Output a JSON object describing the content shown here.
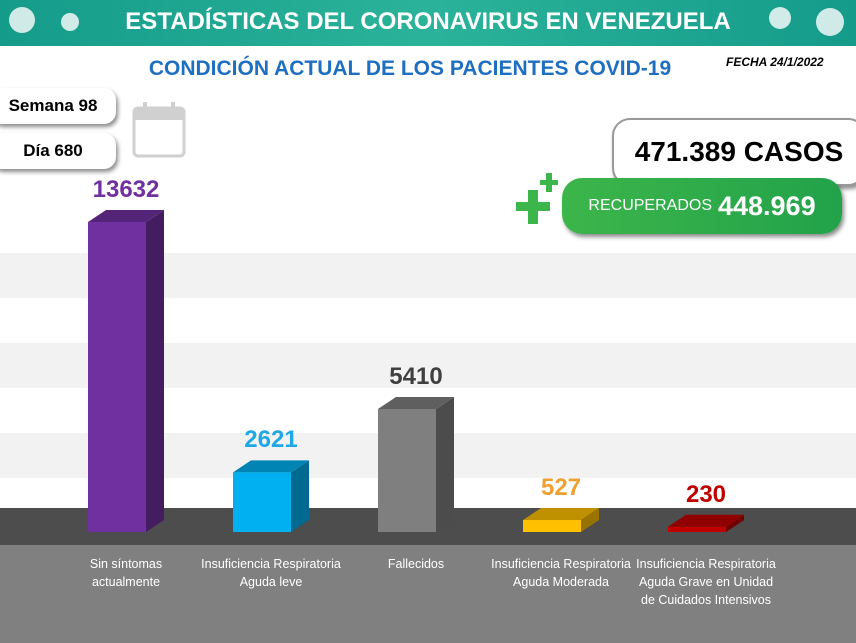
{
  "header": {
    "title": "ESTADÍSTICAS DEL CORONAVIRUS EN VENEZUELA",
    "subtitle": "CONDICIÓN ACTUAL DE LOS PACIENTES COVID-19",
    "date": "FECHA 24/1/2022"
  },
  "counters": {
    "week": "Semana 98",
    "day": "Día 680",
    "cases": "471.389 CASOS",
    "recovered_label": "RECUPERADOS",
    "recovered_value": "448.969"
  },
  "chart_data": {
    "type": "bar3d",
    "categories": [
      "Sin síntomas actualmente",
      "Insuficiencia Respiratoria Aguda leve",
      "Fallecidos",
      "Insuficiencia Respiratoria Aguda Moderada",
      "Insuficiencia Respiratoria Aguda Grave en Unidad de Cuidados Intensivos"
    ],
    "values": [
      13632,
      2621,
      5410,
      527,
      230
    ],
    "colors": [
      "#7030a0",
      "#00b0f0",
      "#7f7f7f",
      "#ffc000",
      "#c00000"
    ],
    "label_colors": [
      "#7030a0",
      "#1fa8e6",
      "#404040",
      "#f0a030",
      "#c00000"
    ]
  }
}
